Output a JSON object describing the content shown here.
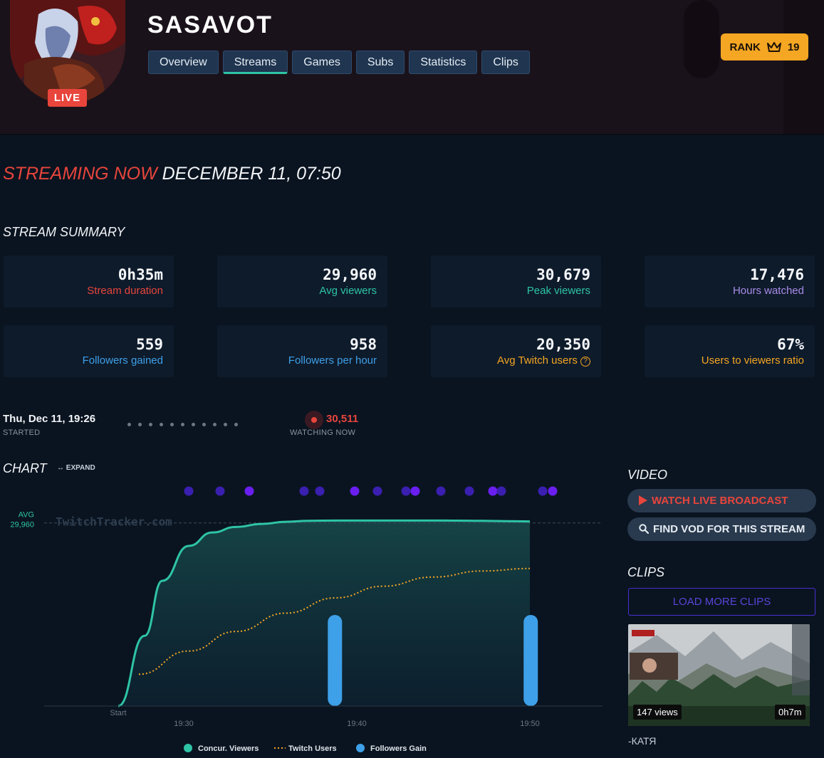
{
  "channel": {
    "name": "SASAVOT",
    "live_badge": "LIVE"
  },
  "tabs": [
    {
      "label": "Overview"
    },
    {
      "label": "Streams",
      "active": true
    },
    {
      "label": "Games"
    },
    {
      "label": "Subs"
    },
    {
      "label": "Statistics"
    },
    {
      "label": "Clips"
    }
  ],
  "rank": {
    "label": "RANK",
    "value": "19",
    "icon": "crown-icon"
  },
  "headline": {
    "status": "STREAMING NOW",
    "date": "DECEMBER 11, 07:50"
  },
  "summary": {
    "title": "STREAM SUMMARY",
    "stats": [
      {
        "value": "0h35m",
        "label": "Stream duration",
        "color": "#e8453c"
      },
      {
        "value": "29,960",
        "label": "Avg viewers",
        "color": "#2ec4a6"
      },
      {
        "value": "30,679",
        "label": "Peak viewers",
        "color": "#2ec4a6"
      },
      {
        "value": "17,476",
        "label": "Hours watched",
        "color": "#a98be8"
      },
      {
        "value": "559",
        "label": "Followers gained",
        "color": "#3ea0e8"
      },
      {
        "value": "958",
        "label": "Followers per hour",
        "color": "#3ea0e8"
      },
      {
        "value": "20,350",
        "label": "Avg Twitch users",
        "color": "#f5a623"
      },
      {
        "value": "67%",
        "label": "Users to viewers ratio",
        "color": "#f5a623"
      }
    ],
    "help_glyph": "?"
  },
  "timeline": {
    "started_time": "Thu, Dec 11, 19:26",
    "started_label": "STARTED",
    "watching_now": "30,511",
    "watching_label": "WATCHING NOW"
  },
  "chart_section": {
    "title": "CHART",
    "expand_label": "↔ EXPAND"
  },
  "chart_data": {
    "type": "line",
    "x_ticks": [
      "Start",
      "19:30",
      "19:40",
      "19:50"
    ],
    "avg_label": "AVG",
    "avg_value": "29,960",
    "avg": 29960,
    "watermark": "TwitchTracker.com",
    "ylim": [
      0,
      34000
    ],
    "series": [
      {
        "name": "Concur. Viewers",
        "color": "#2ec4a6",
        "x": [
          19.43,
          19.52,
          19.58,
          19.67,
          19.75,
          19.83,
          19.92,
          20.0,
          20.08,
          20.17,
          20.25,
          20.33,
          20.42,
          20.5,
          20.58,
          20.67,
          20.75,
          20.83
        ],
        "values": [
          0,
          11500,
          20500,
          26200,
          28400,
          29300,
          29800,
          30150,
          30300,
          30350,
          30350,
          30350,
          30350,
          30350,
          30330,
          30300,
          30250,
          30200
        ]
      },
      {
        "name": "Twitch Users",
        "color": "#f5a623",
        "x": [
          19.5,
          19.67,
          19.83,
          20.0,
          20.17,
          20.33,
          20.5,
          20.67,
          20.83
        ],
        "values": [
          5200,
          9000,
          12200,
          15200,
          17700,
          19600,
          21100,
          22100,
          22500
        ]
      },
      {
        "name": "Followers Gain",
        "color": "#3ea0e8",
        "x": [
          20.167,
          20.833
        ],
        "values": [
          1,
          1
        ]
      }
    ],
    "x_time_start": 19.43,
    "x_time_end": 20.83,
    "legend": "bottom",
    "event_dot_colors": [
      "#3a1fb0",
      "#6a1ff0"
    ]
  },
  "video": {
    "title": "VIDEO",
    "watch_label": "WATCH LIVE BROADCAST",
    "watch_color": "#e8453c",
    "vod_label": "FIND VOD FOR THIS STREAM"
  },
  "clips": {
    "title": "CLIPS",
    "load_more": "LOAD MORE CLIPS",
    "items": [
      {
        "views": "147 views",
        "duration": "0h7m",
        "title": "-КАТЯ"
      }
    ]
  }
}
